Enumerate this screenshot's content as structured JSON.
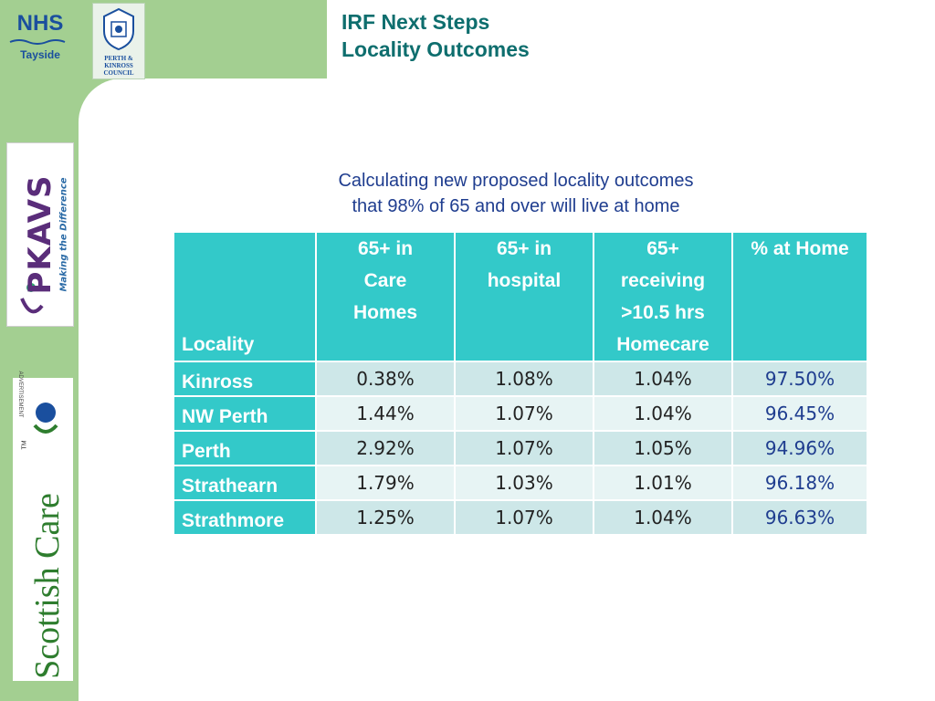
{
  "logos": {
    "nhs": {
      "mark": "NHS",
      "sub": "Tayside"
    },
    "council": {
      "line1": "PERTH &",
      "line2": "KINROSS",
      "line3": "COUNCIL"
    },
    "pkavs": {
      "brand": "PKAVS",
      "tagline": "Making the Difference"
    },
    "scottish_care": {
      "advert": "ADVERTISEMENT",
      "name": "Scottish Care",
      "tm": "TM"
    }
  },
  "slide": {
    "title_line1": "IRF Next Steps",
    "title_line2": "Locality Outcomes",
    "subtitle_line1": "Calculating new proposed locality outcomes",
    "subtitle_line2": "that 98% of 65 and over will live at home"
  },
  "table": {
    "headers": {
      "locality": "Locality",
      "care_homes": [
        "65+ in",
        "Care",
        "Homes"
      ],
      "hospital": [
        "65+ in",
        "hospital"
      ],
      "homecare": [
        "65+",
        "receiving",
        ">10.5 hrs",
        "Homecare"
      ],
      "at_home": "% at Home"
    },
    "rows": [
      {
        "locality": "Kinross",
        "care_homes": "0.38%",
        "hospital": "1.08%",
        "homecare": "1.04%",
        "at_home": "97.50%"
      },
      {
        "locality": "NW Perth",
        "care_homes": "1.44%",
        "hospital": "1.07%",
        "homecare": "1.04%",
        "at_home": "96.45%"
      },
      {
        "locality": "Perth",
        "care_homes": "2.92%",
        "hospital": "1.07%",
        "homecare": "1.05%",
        "at_home": "94.96%"
      },
      {
        "locality": "Strathearn",
        "care_homes": "1.79%",
        "hospital": "1.03%",
        "homecare": "1.01%",
        "at_home": "96.18%"
      },
      {
        "locality": "Strathmore",
        "care_homes": "1.25%",
        "hospital": "1.07%",
        "homecare": "1.04%",
        "at_home": "96.63%"
      }
    ]
  },
  "colors": {
    "band_green": "#a3cf91",
    "header_teal": "#33c9c9",
    "title_teal": "#0e6e6e",
    "text_navy": "#1f3d8f"
  }
}
